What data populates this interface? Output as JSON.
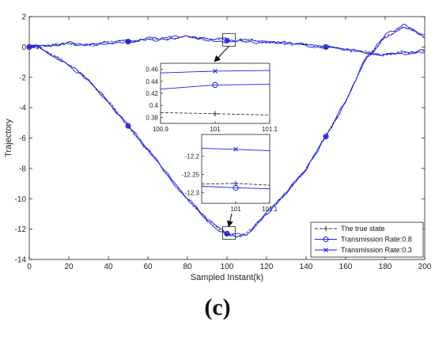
{
  "caption": "(c)",
  "chart_data": {
    "type": "line",
    "xlabel": "Sampled Instant(k)",
    "ylabel": "Trajectory",
    "xlim": [
      0,
      200
    ],
    "ylim": [
      -14,
      2
    ],
    "xticks": [
      0,
      20,
      40,
      60,
      80,
      100,
      120,
      140,
      160,
      180,
      200
    ],
    "yticks": [
      2,
      0,
      -2,
      -4,
      -6,
      -8,
      -10,
      -12,
      -14
    ],
    "legend_position": "bottom-right",
    "legend": [
      {
        "label": "The true state",
        "marker": "plus",
        "style": "dashed",
        "color": "#333333"
      },
      {
        "label": "Transmission Rate:0.8",
        "marker": "circle",
        "style": "solid",
        "color": "#1a1aff"
      },
      {
        "label": "Transmission Rate:0.3",
        "marker": "x",
        "style": "solid",
        "color": "#1a1aff"
      }
    ],
    "trajectories": [
      {
        "state": "upper",
        "x": [
          0,
          10,
          20,
          30,
          40,
          50,
          60,
          70,
          80,
          90,
          100,
          110,
          120,
          130,
          140,
          150,
          160,
          170,
          180,
          190,
          200
        ],
        "y": [
          0.0,
          0.05,
          0.2,
          0.1,
          0.3,
          0.35,
          0.5,
          0.55,
          0.7,
          0.5,
          0.42,
          0.45,
          0.3,
          0.25,
          0.15,
          0.0,
          -0.15,
          -0.3,
          -0.5,
          -0.35,
          -0.3
        ]
      },
      {
        "state": "lower",
        "x": [
          0,
          5,
          10,
          20,
          30,
          40,
          50,
          60,
          70,
          80,
          90,
          100,
          105,
          110,
          120,
          130,
          140,
          150,
          160,
          170,
          180,
          190,
          195,
          200
        ],
        "y": [
          0.0,
          -0.05,
          -0.4,
          -1.2,
          -2.2,
          -3.6,
          -5.2,
          -6.8,
          -8.4,
          -10.0,
          -11.4,
          -12.3,
          -12.45,
          -12.3,
          -11.0,
          -9.6,
          -8.0,
          -5.9,
          -3.6,
          -0.8,
          0.7,
          1.4,
          1.1,
          0.7
        ]
      }
    ],
    "markers_at": [
      0,
      50,
      100,
      150
    ],
    "insets": [
      {
        "x": [
          100.9,
          101,
          101.1
        ],
        "xticks": [
          "100.9",
          "101",
          "101.1"
        ],
        "ylim": [
          0.37,
          0.47
        ],
        "yticks": [
          "0.46",
          "0.44",
          "0.42",
          "0.4",
          "0.38"
        ],
        "true_state": [
          0.388,
          0.386,
          0.384
        ],
        "rate_0_8": [
          0.427,
          0.434,
          0.435
        ],
        "rate_0_3": [
          0.454,
          0.457,
          0.458
        ]
      },
      {
        "x": [
          100.9,
          101,
          101.1
        ],
        "xticks": [
          "101",
          "101.1"
        ],
        "ylim": [
          -12.33,
          -12.14
        ],
        "yticks": [
          "-12.2",
          "-12.25",
          "-12.3"
        ],
        "true_state": [
          -12.277,
          -12.275,
          -12.28
        ],
        "rate_0_8": [
          -12.283,
          -12.287,
          -12.29
        ],
        "rate_0_3": [
          -12.178,
          -12.181,
          -12.185
        ]
      }
    ]
  }
}
